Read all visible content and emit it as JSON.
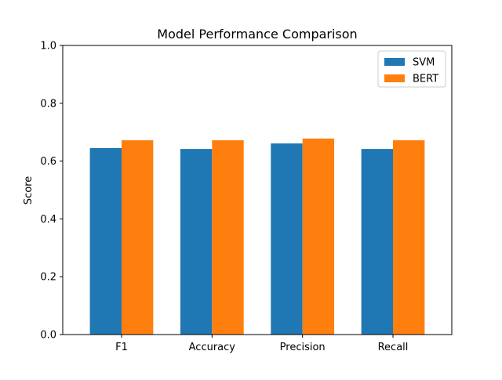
{
  "chart_data": {
    "type": "bar",
    "title": "Model Performance Comparison",
    "xlabel": "",
    "ylabel": "Score",
    "categories": [
      "F1",
      "Accuracy",
      "Precision",
      "Recall"
    ],
    "series": [
      {
        "name": "SVM",
        "values": [
          0.645,
          0.642,
          0.661,
          0.642
        ],
        "color": "#1f77b4"
      },
      {
        "name": "BERT",
        "values": [
          0.672,
          0.672,
          0.678,
          0.672
        ],
        "color": "#ff7f0e"
      }
    ],
    "ylim": [
      0,
      1.0
    ],
    "yticks": [
      "0.0",
      "0.2",
      "0.4",
      "0.6",
      "0.8",
      "1.0"
    ],
    "grid": false,
    "legend": "top-right"
  }
}
